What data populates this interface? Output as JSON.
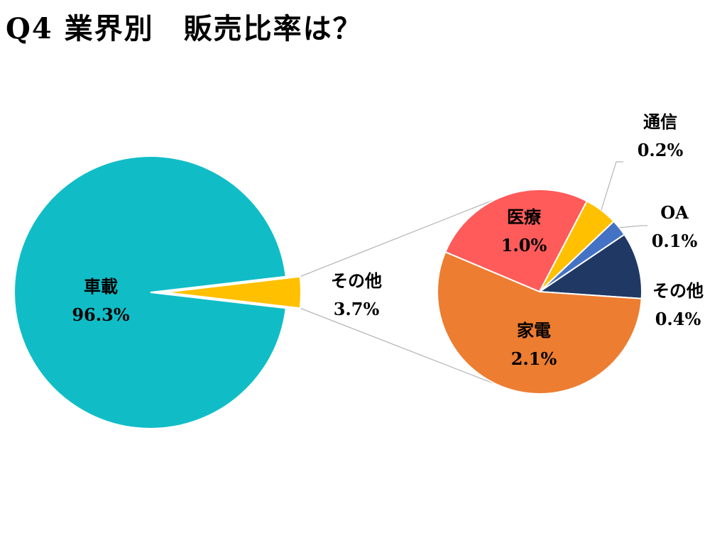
{
  "page": {
    "title": "Q4 業界別　販売比率は？"
  },
  "chart_data": [
    {
      "type": "pie",
      "title": "",
      "slices": [
        {
          "label": "車載",
          "value": 96.3,
          "display": "96.3%",
          "color": "#10BDC7"
        },
        {
          "label": "その他",
          "value": 3.7,
          "display": "3.7%",
          "color": "#FFC000"
        }
      ]
    },
    {
      "type": "pie",
      "title": "",
      "slices": [
        {
          "label": "家電",
          "value": 2.1,
          "display": "2.1%",
          "color": "#ED7D31"
        },
        {
          "label": "医療",
          "value": 1.0,
          "display": "1.0%",
          "color": "#FF5B5B"
        },
        {
          "label": "通信",
          "value": 0.2,
          "display": "0.2%",
          "color": "#FFC000"
        },
        {
          "label": "OA",
          "value": 0.1,
          "display": "0.1%",
          "color": "#4472C4"
        },
        {
          "label": "その他",
          "value": 0.4,
          "display": "0.4%",
          "color": "#203864"
        }
      ]
    }
  ]
}
